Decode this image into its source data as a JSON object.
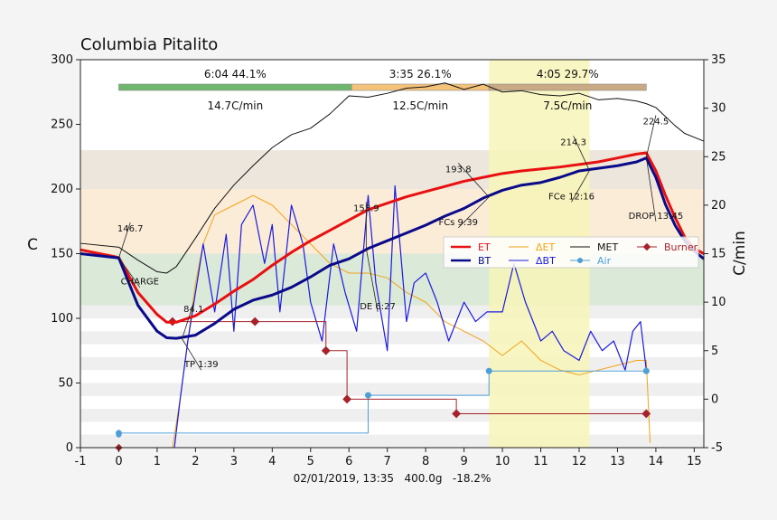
{
  "chart_data": {
    "type": "line",
    "title": "Columbia Pitalito",
    "xlabel": "02/01/2019, 13:35   400.0g   -18.2%",
    "ylabel": "C",
    "y2label": "C/min",
    "xlim": [
      -1,
      15.25
    ],
    "ylim": [
      0,
      300
    ],
    "y2lim": [
      -5,
      35
    ],
    "xticks": [
      -1,
      0,
      1,
      2,
      3,
      4,
      5,
      6,
      7,
      8,
      9,
      10,
      11,
      12,
      13,
      14,
      15
    ],
    "yticks": [
      0,
      50,
      100,
      150,
      200,
      250,
      300
    ],
    "y2ticks": [
      -5,
      0,
      5,
      10,
      15,
      20,
      25,
      30,
      35
    ],
    "legend_position": "center-right",
    "bands": [
      {
        "name": "band-top",
        "from": 200,
        "to": 230,
        "color": "#ece6dc"
      },
      {
        "name": "band-mid",
        "from": 150,
        "to": 200,
        "color": "#fbecd8"
      },
      {
        "name": "band-low",
        "from": 110,
        "to": 150,
        "color": "#dbe9d8"
      }
    ],
    "phase_bars": [
      {
        "name": "drying",
        "from": 0,
        "to": 6.07,
        "label": "6:04  44.1%",
        "rate": "14.7C/min",
        "color": "#6fb66e"
      },
      {
        "name": "maillard",
        "from": 6.07,
        "to": 9.65,
        "label": "3:35  26.1%",
        "rate": "12.5C/min",
        "color": "#f5c27a"
      },
      {
        "name": "development",
        "from": 9.65,
        "to": 13.75,
        "label": "4:05  29.7%",
        "rate": "7.5C/min",
        "color": "#c9aa85"
      }
    ],
    "highlight": {
      "from": 9.65,
      "to": 12.27,
      "color": "#f7f5b8"
    },
    "annotations": [
      {
        "text": "146.7",
        "x": 0,
        "y": 146.7,
        "tx": 0.3,
        "ty": 174
      },
      {
        "text": "CHARGE",
        "x": 0,
        "y": 146.7,
        "tx": 0.55,
        "ty": 124
      },
      {
        "text": "84.1",
        "x": 1.65,
        "y": 84.1,
        "tx": 1.95,
        "ty": 112
      },
      {
        "text": "TP 1:39",
        "x": 1.65,
        "y": 84.1,
        "tx": 2.15,
        "ty": 60
      },
      {
        "text": "153.9",
        "x": 6.45,
        "y": 153.9,
        "tx": 6.45,
        "ty": 190
      },
      {
        "text": "DE 6:27",
        "x": 6.45,
        "y": 153.9,
        "tx": 6.75,
        "ty": 105
      },
      {
        "text": "193.8",
        "x": 9.65,
        "y": 193.8,
        "tx": 8.85,
        "ty": 220
      },
      {
        "text": "FCs 9:39",
        "x": 9.65,
        "y": 193.8,
        "tx": 8.85,
        "ty": 170
      },
      {
        "text": "214.3",
        "x": 12.27,
        "y": 214.3,
        "tx": 11.85,
        "ty": 241
      },
      {
        "text": "FCe 12:16",
        "x": 12.27,
        "y": 214.3,
        "tx": 11.8,
        "ty": 190
      },
      {
        "text": "224.5",
        "x": 13.75,
        "y": 224.5,
        "tx": 14.0,
        "ty": 257
      },
      {
        "text": "DROP 13:45",
        "x": 13.75,
        "y": 224.5,
        "tx": 14.0,
        "ty": 175
      }
    ],
    "legend": [
      {
        "label": "ET",
        "color": "#e81010",
        "style": "thick"
      },
      {
        "label": "ΔET",
        "color": "#f0a318",
        "style": "thin"
      },
      {
        "label": "MET",
        "color": "#111111",
        "style": "thin"
      },
      {
        "label": "Burner",
        "color": "#a6232b",
        "style": "marker"
      },
      {
        "label": "BT",
        "color": "#0a0a8a",
        "style": "thick"
      },
      {
        "label": "ΔBT",
        "color": "#1a1ae0",
        "style": "thin"
      },
      {
        "label": "Air",
        "color": "#4f9fd6",
        "style": "marker"
      }
    ],
    "series": [
      {
        "name": "ET",
        "axis": "y1",
        "color": "#e81010",
        "width": 3,
        "x": [
          -1,
          0,
          0.5,
          1,
          1.25,
          1.5,
          2,
          2.5,
          3,
          3.5,
          4,
          4.5,
          5,
          5.5,
          6,
          6.5,
          7,
          7.5,
          8,
          8.5,
          9,
          9.5,
          10,
          10.5,
          11,
          11.5,
          12,
          12.5,
          13,
          13.5,
          13.75,
          14,
          14.25,
          14.5,
          14.75,
          15,
          15.25
        ],
        "y": [
          153,
          147,
          120,
          103,
          97,
          97,
          102,
          111,
          121,
          130,
          141,
          151,
          160,
          168,
          176,
          184,
          189,
          194,
          198,
          202,
          206,
          209,
          212,
          214,
          215.5,
          217,
          219,
          221,
          224,
          227,
          228,
          214,
          195,
          178,
          163,
          154,
          150
        ]
      },
      {
        "name": "BT",
        "axis": "y1",
        "color": "#0a0a8a",
        "width": 3,
        "x": [
          -1,
          0,
          0.5,
          1,
          1.25,
          1.5,
          2,
          2.5,
          3,
          3.5,
          4,
          4.5,
          5,
          5.5,
          6,
          6.5,
          7,
          7.5,
          8,
          8.5,
          9,
          9.5,
          10,
          10.5,
          11,
          11.5,
          12,
          12.5,
          13,
          13.5,
          13.75,
          14,
          14.25,
          14.5,
          14.75,
          15,
          15.25
        ],
        "y": [
          150,
          146.7,
          110,
          90,
          85,
          84.5,
          87,
          96,
          107,
          114,
          118,
          124,
          132,
          141,
          146,
          154,
          160,
          166,
          172,
          179,
          185,
          193,
          199,
          203,
          205,
          209,
          214,
          216,
          218,
          221,
          224,
          209,
          188,
          172,
          160,
          152,
          146
        ]
      },
      {
        "name": "MET",
        "axis": "y1",
        "color": "#111111",
        "width": 1,
        "x": [
          -1,
          0,
          0.5,
          1,
          1.25,
          1.5,
          2,
          2.5,
          3,
          3.5,
          4,
          4.5,
          5,
          5.5,
          6,
          6.5,
          7,
          7.5,
          8,
          8.5,
          9,
          9.5,
          10,
          10.5,
          11,
          11.5,
          12,
          12.5,
          13,
          13.5,
          13.75,
          14,
          14.25,
          14.5,
          14.75,
          15,
          15.25
        ],
        "y": [
          158,
          155,
          145,
          136,
          135,
          140,
          162,
          185,
          203,
          218,
          232,
          242,
          247,
          258,
          272,
          271,
          274,
          278,
          279,
          282,
          277,
          281,
          275,
          276,
          273,
          272,
          274,
          269,
          270,
          268,
          266,
          263,
          256,
          249,
          243,
          240,
          237
        ]
      },
      {
        "name": "ΔET",
        "axis": "y2",
        "color": "#f0a318",
        "width": 1,
        "x": [
          1.4,
          1.6,
          1.8,
          2,
          2.2,
          2.5,
          3,
          3.5,
          4,
          4.5,
          5,
          5.5,
          6,
          6.5,
          7,
          7.5,
          8,
          8.5,
          9,
          9.5,
          10,
          10.5,
          11,
          11.5,
          12,
          12.5,
          13,
          13.5,
          13.75,
          13.85
        ],
        "y": [
          -5,
          0,
          6,
          12,
          16,
          19,
          20,
          21,
          20,
          18,
          16,
          14,
          13,
          13,
          12.5,
          11,
          10,
          8,
          7,
          6,
          4.5,
          6,
          4,
          3,
          2.5,
          3,
          3.5,
          4,
          4,
          -4.5
        ]
      },
      {
        "name": "ΔBT",
        "axis": "y2",
        "color": "#1a1ae0",
        "width": 1.2,
        "x": [
          1.45,
          1.6,
          1.8,
          2,
          2.2,
          2.5,
          2.8,
          3,
          3.2,
          3.5,
          3.8,
          4,
          4.2,
          4.5,
          4.8,
          5,
          5.3,
          5.6,
          5.9,
          6.2,
          6.5,
          6.7,
          7,
          7.2,
          7.5,
          7.7,
          8,
          8.3,
          8.6,
          9,
          9.3,
          9.6,
          10,
          10.3,
          10.6,
          11,
          11.3,
          11.6,
          12,
          12.3,
          12.6,
          12.9,
          13.2,
          13.4,
          13.6,
          13.75
        ],
        "y": [
          -5,
          0,
          6,
          11,
          16,
          9,
          17,
          7,
          18,
          20,
          14,
          18,
          9,
          20,
          16,
          10,
          6,
          16,
          11,
          7,
          21,
          12,
          5,
          22,
          8,
          12,
          13,
          10,
          6,
          10,
          8,
          9,
          9,
          14,
          10,
          6,
          7,
          5,
          4,
          7,
          5,
          6,
          3,
          7,
          8,
          3
        ]
      },
      {
        "name": "Burner",
        "axis": "y2",
        "color": "#a6232b",
        "width": 1,
        "step": true,
        "x": [
          1.4,
          3.55,
          5.4,
          5.95,
          8.8,
          13.75
        ],
        "y": [
          8,
          8,
          5,
          0,
          -1.5,
          -1.5
        ]
      },
      {
        "name": "Air",
        "axis": "y2",
        "color": "#4f9fd6",
        "width": 1,
        "step": true,
        "x": [
          0,
          6.5,
          9.65,
          13.75
        ],
        "y": [
          -3.5,
          0.4,
          2.9,
          2.9
        ]
      }
    ],
    "point_markers": [
      {
        "series": "Burner",
        "x": 0,
        "y": 0
      },
      {
        "series": "Air",
        "x": 0,
        "y": 10
      }
    ]
  }
}
